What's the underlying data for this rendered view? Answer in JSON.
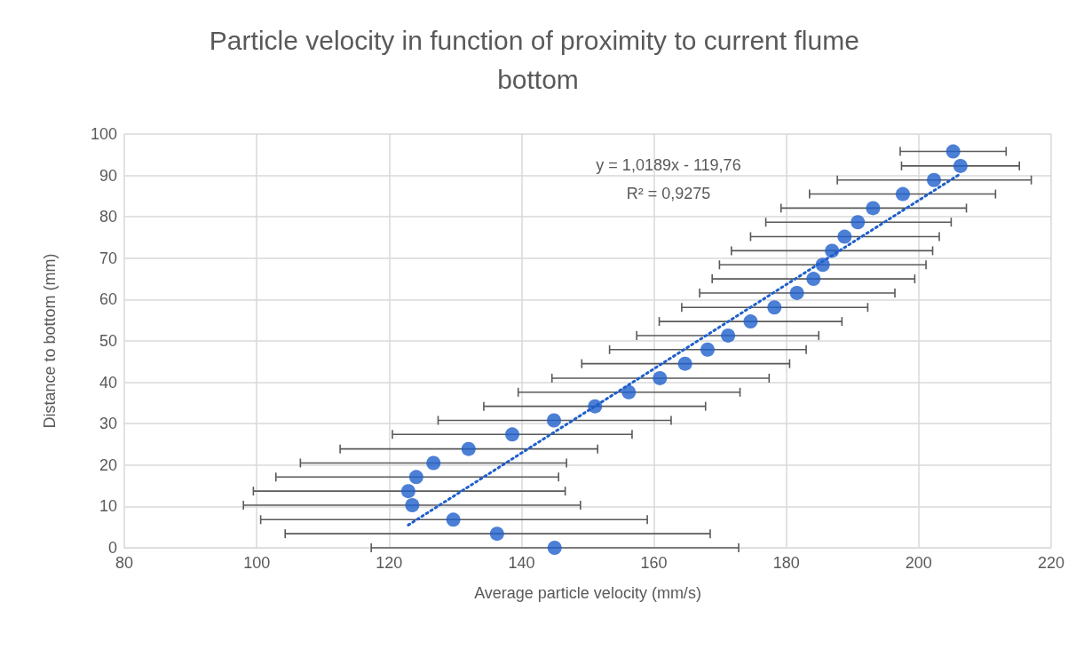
{
  "chart_data": {
    "type": "scatter",
    "title": "Particle velocity in function of proximity to current flume bottom",
    "xlabel": "Average particle velocity (mm/s)",
    "ylabel": "Distance to bottom (mm)",
    "series": [
      {
        "type": "scatter",
        "color": "#1f5fcc",
        "marker": "circle",
        "x": [
          145.0,
          136.3,
          129.7,
          123.5,
          122.9,
          124.1,
          126.7,
          132.0,
          138.6,
          144.9,
          151.1,
          156.2,
          160.9,
          164.7,
          168.1,
          171.2,
          174.6,
          178.2,
          181.6,
          184.1,
          185.5,
          186.9,
          188.8,
          190.8,
          193.1,
          197.6,
          202.3,
          206.3,
          205.2
        ],
        "values": [
          0,
          3.4,
          6.8,
          10.3,
          13.7,
          17.1,
          20.5,
          23.9,
          27.4,
          30.8,
          34.2,
          37.6,
          41.0,
          44.5,
          47.9,
          51.3,
          54.7,
          58.1,
          61.6,
          65.0,
          68.4,
          71.8,
          75.2,
          78.7,
          82.1,
          85.5,
          88.9,
          92.3,
          95.8
        ],
        "xerrors": [
          [
            117.3,
            172.8
          ],
          [
            104.3,
            168.5
          ],
          [
            100.6,
            159.0
          ],
          [
            98.0,
            148.9
          ],
          [
            99.5,
            146.6
          ],
          [
            102.9,
            145.6
          ],
          [
            106.6,
            146.8
          ],
          [
            112.6,
            151.5
          ],
          [
            120.5,
            156.7
          ],
          [
            127.4,
            162.6
          ],
          [
            134.3,
            167.8
          ],
          [
            139.5,
            173.0
          ],
          [
            144.6,
            177.4
          ],
          [
            149.1,
            180.5
          ],
          [
            153.3,
            183.0
          ],
          [
            157.4,
            184.9
          ],
          [
            160.8,
            188.4
          ],
          [
            164.2,
            192.3
          ],
          [
            166.9,
            196.4
          ],
          [
            168.8,
            199.4
          ],
          [
            169.9,
            201.1
          ],
          [
            171.7,
            202.1
          ],
          [
            174.6,
            203.1
          ],
          [
            176.9,
            204.9
          ],
          [
            179.2,
            207.2
          ],
          [
            183.5,
            211.6
          ],
          [
            187.7,
            217.0
          ],
          [
            197.4,
            215.2
          ],
          [
            197.2,
            213.2
          ]
        ]
      },
      {
        "type": "line",
        "color": "#1f5fcc",
        "marker": "none",
        "line_style": "dotted",
        "x": [
          122.9,
          206.3
        ],
        "values": [
          5.5,
          90.4
        ]
      }
    ],
    "annotations": [
      "y = 1,0189x - 119,76",
      "R² = 0,9275"
    ],
    "xlim": [
      80,
      220
    ],
    "xticks": [
      80,
      100,
      120,
      140,
      160,
      180,
      200,
      220
    ],
    "ylim": [
      0,
      100
    ],
    "yticks": [
      0,
      10,
      20,
      30,
      40,
      50,
      60,
      70,
      80,
      90,
      100
    ],
    "grid": true
  }
}
